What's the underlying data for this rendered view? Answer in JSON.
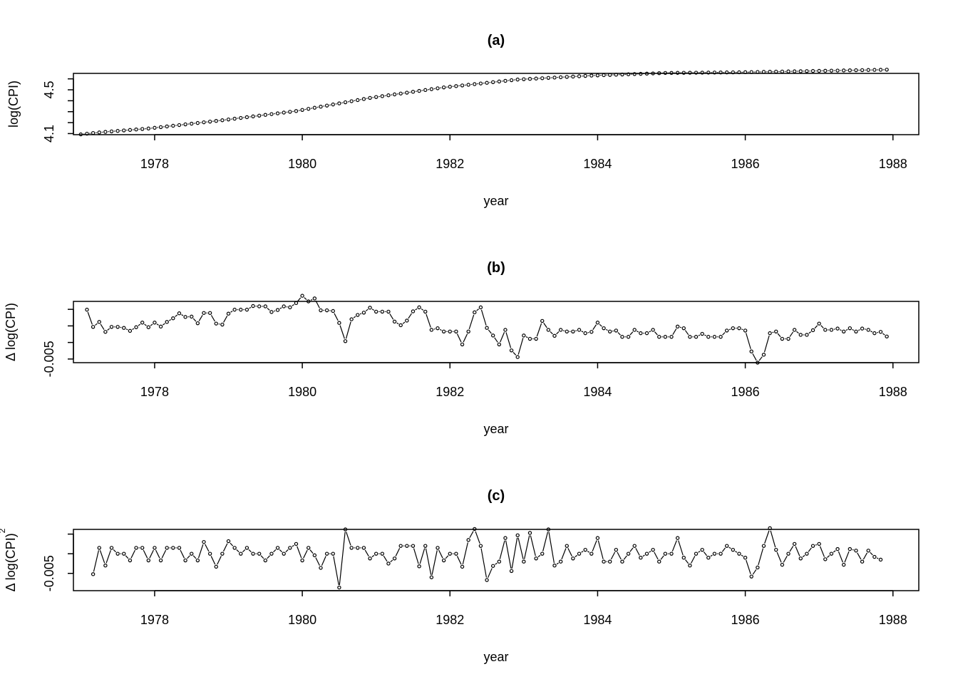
{
  "chart_data": [
    {
      "type": "line",
      "style": "points-and-lines",
      "title": "(a)",
      "xlabel": "year",
      "ylabel": "log(CPI)",
      "ylabel_sup": "",
      "xlim": [
        1976.9,
        1988.35
      ],
      "ylim": [
        4.09,
        4.65
      ],
      "xticks": [
        1978,
        1980,
        1982,
        1984,
        1986,
        1988
      ],
      "yticks": [
        4.1,
        4.2,
        4.3,
        4.4,
        4.5,
        4.6
      ],
      "ytick_labels": [
        "4.1",
        "",
        "",
        "",
        "4.5",
        ""
      ],
      "x_start": 1977.0,
      "x_step": 0.0833333,
      "values": [
        4.0926,
        4.0988,
        4.1051,
        4.1103,
        4.1155,
        4.1199,
        4.1243,
        4.1287,
        4.1331,
        4.1375,
        4.1419,
        4.1463,
        4.1526,
        4.1589,
        4.1652,
        4.1715,
        4.1778,
        4.1841,
        4.1904,
        4.1967,
        4.203,
        4.2093,
        4.2156,
        4.2219,
        4.2289,
        4.2359,
        4.2429,
        4.2499,
        4.2569,
        4.2639,
        4.2709,
        4.2779,
        4.2849,
        4.2919,
        4.2989,
        4.3059,
        4.3159,
        4.3259,
        4.3359,
        4.3459,
        4.3559,
        4.3659,
        4.3759,
        4.3859,
        4.3959,
        4.4059,
        4.4159,
        4.4259,
        4.4339,
        4.4419,
        4.4499,
        4.4579,
        4.4659,
        4.4739,
        4.4819,
        4.4899,
        4.4979,
        4.5059,
        4.5139,
        4.5219,
        4.5279,
        4.5339,
        4.5399,
        4.5459,
        4.5519,
        4.5579,
        4.5639,
        4.5699,
        4.5759,
        4.5819,
        4.5879,
        4.5939,
        4.5969,
        4.5999,
        4.6029,
        4.6059,
        4.6089,
        4.6119,
        4.6149,
        4.6179,
        4.6209,
        4.6239,
        4.6269,
        4.6299,
        4.6319,
        4.6339,
        4.6359,
        4.6379,
        4.6399,
        4.6419,
        4.6439,
        4.6459,
        4.6479,
        4.6499,
        4.6519,
        4.6539,
        4.6544,
        4.6549,
        4.6554,
        4.6559,
        4.6564,
        4.6569,
        4.6574,
        4.6579,
        4.6584,
        4.6589,
        4.6594,
        4.6599,
        4.6609,
        4.6619,
        4.6629,
        4.6639,
        4.6649,
        4.6659,
        4.6669,
        4.6679,
        4.6689,
        4.6699,
        4.6709,
        4.6719,
        4.6729,
        4.6739,
        4.6749,
        4.6759,
        4.6769,
        4.6779,
        4.6789,
        4.6799,
        4.6809,
        4.6819,
        4.6829,
        4.6839
      ]
    },
    {
      "type": "line",
      "style": "points-and-lines",
      "title": "(b)",
      "xlabel": "year",
      "ylabel": "Δ log(CPI)",
      "ylabel_sup": "",
      "xlim": [
        1976.9,
        1988.35
      ],
      "ylim": [
        -0.0061,
        0.0124
      ],
      "xticks": [
        1978,
        1980,
        1982,
        1984,
        1986,
        1988
      ],
      "yticks": [
        -0.005,
        0.0,
        0.005,
        0.01
      ],
      "ytick_labels": [
        "-0.005",
        "",
        "",
        ""
      ],
      "x_start": 1977.0833,
      "x_step": 0.0833333,
      "values": [
        0.0099,
        0.0047,
        0.0062,
        0.0032,
        0.0047,
        0.0047,
        0.0044,
        0.0035,
        0.0046,
        0.006,
        0.0046,
        0.006,
        0.0048,
        0.0062,
        0.0073,
        0.0088,
        0.0077,
        0.0078,
        0.0058,
        0.0089,
        0.0089,
        0.0057,
        0.0054,
        0.0087,
        0.0099,
        0.0099,
        0.0099,
        0.011,
        0.0109,
        0.0109,
        0.0092,
        0.0098,
        0.0109,
        0.0106,
        0.0119,
        0.0141,
        0.0124,
        0.0133,
        0.0097,
        0.0097,
        0.0095,
        0.0059,
        0.0004,
        0.007,
        0.0083,
        0.009,
        0.0105,
        0.0093,
        0.0093,
        0.0093,
        0.0063,
        0.0052,
        0.0066,
        0.0094,
        0.0106,
        0.0093,
        0.0038,
        0.0043,
        0.0033,
        0.0033,
        0.0033,
        -0.0006,
        0.0033,
        0.0091,
        0.0106,
        0.0044,
        0.0021,
        -0.0006,
        0.0038,
        -0.0024,
        -0.0044,
        0.0021,
        0.0011,
        0.0011,
        0.0065,
        0.0038,
        0.002,
        0.0038,
        0.0033,
        0.0033,
        0.0038,
        0.0028,
        0.0032,
        0.006,
        0.0043,
        0.0033,
        0.0036,
        0.0017,
        0.0017,
        0.0038,
        0.0028,
        0.0028,
        0.0038,
        0.0017,
        0.0017,
        0.0017,
        0.0048,
        0.0043,
        0.0017,
        0.0017,
        0.0026,
        0.0017,
        0.0017,
        0.0017,
        0.0036,
        0.0043,
        0.0043,
        0.0036,
        -0.0027,
        -0.0061,
        -0.0037,
        0.0028,
        0.0033,
        0.0011,
        0.0011,
        0.0038,
        0.0023,
        0.0023,
        0.0037,
        0.0057,
        0.0038,
        0.0038,
        0.0042,
        0.0033,
        0.0043,
        0.0033,
        0.0042,
        0.0038,
        0.0028,
        0.0032,
        0.0018
      ]
    },
    {
      "type": "line",
      "style": "points-and-lines",
      "title": "(c)",
      "xlabel": "year",
      "ylabel": "Δ log(CPI)",
      "ylabel_sup": "2",
      "xlim": [
        1976.9,
        1988.35
      ],
      "ylim": [
        -0.0094,
        0.0062
      ],
      "xticks": [
        1978,
        1980,
        1982,
        1984,
        1986,
        1988
      ],
      "yticks": [
        -0.005,
        0.0,
        0.005
      ],
      "ytick_labels": [
        "-0.005",
        "",
        ""
      ],
      "x_start": 1977.1667,
      "x_step": 0.0833333,
      "values": [
        -0.0052,
        0.0015,
        -0.003,
        0.0015,
        0.0,
        0.0,
        -0.0017,
        0.0015,
        0.0015,
        -0.0017,
        0.0015,
        -0.0017,
        0.0015,
        0.0015,
        0.0015,
        -0.0017,
        0.0,
        -0.0017,
        0.003,
        0.0,
        -0.0033,
        0.0,
        0.0032,
        0.0015,
        0.0,
        0.0015,
        0.0,
        0.0,
        -0.0017,
        0.0,
        0.0015,
        0.0,
        0.0015,
        0.0025,
        -0.0017,
        0.0015,
        -0.0004,
        -0.0036,
        0.0,
        0.0,
        -0.0086,
        0.0062,
        0.0015,
        0.0015,
        0.0015,
        -0.0012,
        0.0,
        0.0,
        -0.0025,
        -0.0012,
        0.002,
        0.002,
        0.002,
        -0.0032,
        0.002,
        -0.006,
        0.0015,
        -0.0017,
        0.0,
        0.0,
        -0.0033,
        0.0035,
        0.0063,
        0.002,
        -0.0067,
        -0.0031,
        -0.002,
        0.004,
        -0.0044,
        0.0047,
        -0.002,
        0.0053,
        -0.0012,
        0.0,
        0.0062,
        -0.003,
        -0.002,
        0.002,
        -0.0012,
        0.0,
        0.001,
        0.0,
        0.004,
        -0.002,
        -0.002,
        0.001,
        -0.002,
        0.0,
        0.002,
        -0.001,
        0.0,
        0.001,
        -0.002,
        0.0,
        0.0,
        0.004,
        -0.001,
        -0.003,
        0.0,
        0.001,
        -0.001,
        0.0,
        0.0,
        0.002,
        0.001,
        0.0,
        -0.001,
        -0.0058,
        -0.0035,
        0.002,
        0.0065,
        0.001,
        -0.0028,
        0.0,
        0.0025,
        -0.0012,
        0.0,
        0.002,
        0.0025,
        -0.0014,
        0.0,
        0.0012,
        -0.0028,
        0.0012,
        0.0008,
        -0.002,
        0.0008,
        -0.0008,
        -0.0015
      ]
    }
  ]
}
